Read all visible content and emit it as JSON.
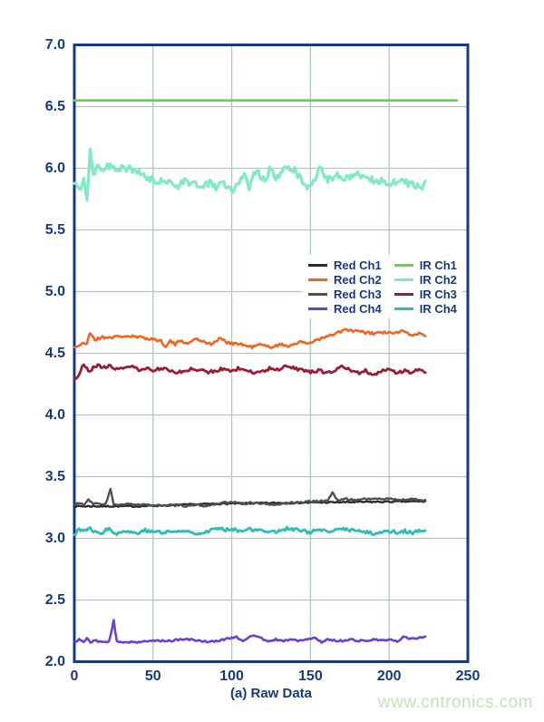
{
  "page": {
    "watermark": "www.cntronics.com"
  },
  "chart_data": {
    "type": "line",
    "title": "",
    "caption": "(a) Raw Data",
    "xlabel": "",
    "ylabel": "",
    "xlim": [
      0,
      250
    ],
    "ylim": [
      2.0,
      7.0
    ],
    "xticks": [
      "0",
      "50",
      "100",
      "150",
      "200",
      "250"
    ],
    "yticks": [
      "7.0",
      "6.5",
      "6.0",
      "5.5",
      "5.0",
      "4.5",
      "4.0",
      "3.5",
      "3.0",
      "2.5",
      "2.0"
    ],
    "grid": true,
    "legend_position": "center-right-two-columns",
    "colors": {
      "axis": "#173a7e",
      "grid": "#abc7cf",
      "tick_text": "#173a7e",
      "caption_text": "#173a7e",
      "watermark_text": "#c3e3b6",
      "legend_background": "#ffffff"
    },
    "series": [
      {
        "name": "Red Ch1",
        "color": "#2b2b2d",
        "width": 2.4,
        "noise": 0.006,
        "seed": 7,
        "points": [
          [
            0,
            3.26
          ],
          [
            40,
            3.26
          ],
          [
            90,
            3.28
          ],
          [
            150,
            3.29
          ],
          [
            223,
            3.3
          ]
        ]
      },
      {
        "name": "Red Ch2",
        "color": "#f2641f",
        "width": 2.6,
        "noise": 0.012,
        "seed": 21,
        "points": [
          [
            0,
            4.55
          ],
          [
            4,
            4.57
          ],
          [
            8,
            4.58
          ],
          [
            10,
            4.67
          ],
          [
            13,
            4.61
          ],
          [
            18,
            4.63
          ],
          [
            25,
            4.63
          ],
          [
            32,
            4.64
          ],
          [
            40,
            4.63
          ],
          [
            48,
            4.62
          ],
          [
            55,
            4.6
          ],
          [
            58,
            4.56
          ],
          [
            61,
            4.6
          ],
          [
            64,
            4.57
          ],
          [
            68,
            4.61
          ],
          [
            72,
            4.57
          ],
          [
            76,
            4.62
          ],
          [
            82,
            4.6
          ],
          [
            87,
            4.57
          ],
          [
            92,
            4.62
          ],
          [
            97,
            4.59
          ],
          [
            102,
            4.58
          ],
          [
            107,
            4.57
          ],
          [
            112,
            4.55
          ],
          [
            118,
            4.57
          ],
          [
            124,
            4.55
          ],
          [
            130,
            4.57
          ],
          [
            136,
            4.56
          ],
          [
            142,
            4.59
          ],
          [
            148,
            4.58
          ],
          [
            154,
            4.61
          ],
          [
            160,
            4.63
          ],
          [
            166,
            4.66
          ],
          [
            172,
            4.69
          ],
          [
            178,
            4.68
          ],
          [
            184,
            4.67
          ],
          [
            190,
            4.66
          ],
          [
            196,
            4.67
          ],
          [
            202,
            4.66
          ],
          [
            208,
            4.68
          ],
          [
            214,
            4.65
          ],
          [
            219,
            4.66
          ],
          [
            223,
            4.65
          ]
        ]
      },
      {
        "name": "Red Ch3",
        "color": "#4e4f52",
        "width": 2.4,
        "noise": 0.007,
        "seed": 33,
        "points": [
          [
            0,
            3.27
          ],
          [
            3,
            3.29
          ],
          [
            6,
            3.27
          ],
          [
            9,
            3.31
          ],
          [
            12,
            3.28
          ],
          [
            16,
            3.28
          ],
          [
            20,
            3.28
          ],
          [
            23,
            3.4
          ],
          [
            25,
            3.27
          ],
          [
            30,
            3.27
          ],
          [
            36,
            3.28
          ],
          [
            42,
            3.27
          ],
          [
            48,
            3.27
          ],
          [
            54,
            3.27
          ],
          [
            60,
            3.26
          ],
          [
            66,
            3.27
          ],
          [
            72,
            3.26
          ],
          [
            78,
            3.27
          ],
          [
            84,
            3.26
          ],
          [
            90,
            3.28
          ],
          [
            96,
            3.29
          ],
          [
            102,
            3.29
          ],
          [
            108,
            3.28
          ],
          [
            114,
            3.29
          ],
          [
            120,
            3.28
          ],
          [
            126,
            3.27
          ],
          [
            132,
            3.28
          ],
          [
            138,
            3.29
          ],
          [
            144,
            3.29
          ],
          [
            150,
            3.3
          ],
          [
            156,
            3.3
          ],
          [
            161,
            3.31
          ],
          [
            164,
            3.37
          ],
          [
            167,
            3.31
          ],
          [
            172,
            3.32
          ],
          [
            178,
            3.31
          ],
          [
            184,
            3.32
          ],
          [
            190,
            3.32
          ],
          [
            196,
            3.32
          ],
          [
            202,
            3.32
          ],
          [
            208,
            3.31
          ],
          [
            214,
            3.32
          ],
          [
            219,
            3.31
          ],
          [
            223,
            3.31
          ]
        ]
      },
      {
        "name": "Red Ch4",
        "color": "#6a3fd2",
        "width": 2.6,
        "noise": 0.007,
        "seed": 44,
        "points": [
          [
            0,
            2.16
          ],
          [
            3,
            2.18
          ],
          [
            6,
            2.16
          ],
          [
            8,
            2.19
          ],
          [
            10,
            2.16
          ],
          [
            14,
            2.17
          ],
          [
            18,
            2.16
          ],
          [
            22,
            2.16
          ],
          [
            25,
            2.33
          ],
          [
            27,
            2.16
          ],
          [
            32,
            2.16
          ],
          [
            38,
            2.16
          ],
          [
            44,
            2.16
          ],
          [
            50,
            2.17
          ],
          [
            56,
            2.17
          ],
          [
            62,
            2.17
          ],
          [
            68,
            2.18
          ],
          [
            74,
            2.18
          ],
          [
            80,
            2.17
          ],
          [
            86,
            2.16
          ],
          [
            92,
            2.17
          ],
          [
            98,
            2.19
          ],
          [
            103,
            2.2
          ],
          [
            107,
            2.17
          ],
          [
            111,
            2.2
          ],
          [
            115,
            2.21
          ],
          [
            119,
            2.19
          ],
          [
            123,
            2.16
          ],
          [
            128,
            2.18
          ],
          [
            133,
            2.17
          ],
          [
            138,
            2.18
          ],
          [
            143,
            2.17
          ],
          [
            148,
            2.18
          ],
          [
            153,
            2.19
          ],
          [
            157,
            2.16
          ],
          [
            161,
            2.18
          ],
          [
            166,
            2.17
          ],
          [
            171,
            2.17
          ],
          [
            176,
            2.18
          ],
          [
            181,
            2.17
          ],
          [
            186,
            2.17
          ],
          [
            191,
            2.18
          ],
          [
            196,
            2.17
          ],
          [
            201,
            2.18
          ],
          [
            205,
            2.16
          ],
          [
            209,
            2.2
          ],
          [
            213,
            2.19
          ],
          [
            217,
            2.19
          ],
          [
            221,
            2.2
          ],
          [
            223,
            2.2
          ]
        ]
      },
      {
        "name": "IR Ch1",
        "color": "#5ed648",
        "width": 2.6,
        "noise": 0,
        "seed": 1,
        "points": [
          [
            0,
            6.55
          ],
          [
            243,
            6.55
          ]
        ]
      },
      {
        "name": "IR Ch2",
        "color": "#82e9c6",
        "width": 3.2,
        "noise": 0.03,
        "seed": 55,
        "points": [
          [
            0,
            5.88
          ],
          [
            3,
            5.82
          ],
          [
            6,
            5.92
          ],
          [
            8,
            5.74
          ],
          [
            10,
            6.15
          ],
          [
            12,
            5.96
          ],
          [
            15,
            6.03
          ],
          [
            18,
            6.0
          ],
          [
            22,
            6.02
          ],
          [
            26,
            6.0
          ],
          [
            30,
            6.01
          ],
          [
            34,
            6.0
          ],
          [
            38,
            5.98
          ],
          [
            42,
            5.95
          ],
          [
            46,
            5.92
          ],
          [
            50,
            5.9
          ],
          [
            54,
            5.88
          ],
          [
            58,
            5.91
          ],
          [
            62,
            5.88
          ],
          [
            66,
            5.86
          ],
          [
            70,
            5.9
          ],
          [
            74,
            5.88
          ],
          [
            78,
            5.87
          ],
          [
            82,
            5.85
          ],
          [
            86,
            5.88
          ],
          [
            90,
            5.85
          ],
          [
            94,
            5.88
          ],
          [
            98,
            5.85
          ],
          [
            101,
            5.79
          ],
          [
            104,
            5.9
          ],
          [
            108,
            5.94
          ],
          [
            111,
            5.85
          ],
          [
            114,
            5.99
          ],
          [
            118,
            5.95
          ],
          [
            121,
            5.88
          ],
          [
            124,
            5.99
          ],
          [
            128,
            5.92
          ],
          [
            132,
            5.97
          ],
          [
            136,
            6.0
          ],
          [
            140,
            5.98
          ],
          [
            144,
            5.91
          ],
          [
            148,
            5.86
          ],
          [
            152,
            5.88
          ],
          [
            156,
            6.02
          ],
          [
            159,
            5.9
          ],
          [
            163,
            5.92
          ],
          [
            167,
            5.95
          ],
          [
            171,
            5.91
          ],
          [
            176,
            5.92
          ],
          [
            181,
            5.95
          ],
          [
            186,
            5.93
          ],
          [
            191,
            5.9
          ],
          [
            196,
            5.9
          ],
          [
            201,
            5.88
          ],
          [
            206,
            5.91
          ],
          [
            211,
            5.88
          ],
          [
            216,
            5.86
          ],
          [
            220,
            5.84
          ],
          [
            223,
            5.87
          ]
        ]
      },
      {
        "name": "IR Ch3",
        "color": "#9d1b33",
        "width": 2.8,
        "noise": 0.013,
        "seed": 66,
        "points": [
          [
            0,
            4.3
          ],
          [
            3,
            4.32
          ],
          [
            6,
            4.42
          ],
          [
            9,
            4.36
          ],
          [
            12,
            4.38
          ],
          [
            15,
            4.4
          ],
          [
            18,
            4.38
          ],
          [
            22,
            4.4
          ],
          [
            26,
            4.38
          ],
          [
            30,
            4.38
          ],
          [
            34,
            4.4
          ],
          [
            38,
            4.38
          ],
          [
            42,
            4.36
          ],
          [
            46,
            4.38
          ],
          [
            50,
            4.36
          ],
          [
            55,
            4.38
          ],
          [
            60,
            4.36
          ],
          [
            65,
            4.34
          ],
          [
            70,
            4.36
          ],
          [
            75,
            4.38
          ],
          [
            80,
            4.36
          ],
          [
            85,
            4.35
          ],
          [
            90,
            4.36
          ],
          [
            95,
            4.38
          ],
          [
            100,
            4.36
          ],
          [
            105,
            4.38
          ],
          [
            110,
            4.36
          ],
          [
            115,
            4.34
          ],
          [
            120,
            4.36
          ],
          [
            125,
            4.38
          ],
          [
            130,
            4.36
          ],
          [
            135,
            4.4
          ],
          [
            140,
            4.38
          ],
          [
            145,
            4.36
          ],
          [
            150,
            4.35
          ],
          [
            155,
            4.36
          ],
          [
            160,
            4.34
          ],
          [
            165,
            4.36
          ],
          [
            170,
            4.4
          ],
          [
            175,
            4.36
          ],
          [
            180,
            4.34
          ],
          [
            185,
            4.36
          ],
          [
            190,
            4.32
          ],
          [
            195,
            4.36
          ],
          [
            200,
            4.38
          ],
          [
            205,
            4.34
          ],
          [
            210,
            4.36
          ],
          [
            215,
            4.34
          ],
          [
            219,
            4.38
          ],
          [
            223,
            4.34
          ]
        ]
      },
      {
        "name": "IR Ch4",
        "color": "#2fbcb9",
        "width": 2.8,
        "noise": 0.014,
        "seed": 77,
        "points": [
          [
            0,
            3.03
          ],
          [
            3,
            3.08
          ],
          [
            6,
            3.05
          ],
          [
            9,
            3.09
          ],
          [
            12,
            3.05
          ],
          [
            15,
            3.06
          ],
          [
            18,
            3.04
          ],
          [
            22,
            3.09
          ],
          [
            25,
            3.05
          ],
          [
            28,
            3.04
          ],
          [
            32,
            3.06
          ],
          [
            36,
            3.05
          ],
          [
            40,
            3.04
          ],
          [
            44,
            3.07
          ],
          [
            48,
            3.05
          ],
          [
            52,
            3.06
          ],
          [
            56,
            3.04
          ],
          [
            60,
            3.06
          ],
          [
            65,
            3.05
          ],
          [
            70,
            3.06
          ],
          [
            75,
            3.05
          ],
          [
            80,
            3.04
          ],
          [
            85,
            3.06
          ],
          [
            90,
            3.08
          ],
          [
            95,
            3.07
          ],
          [
            100,
            3.08
          ],
          [
            105,
            3.06
          ],
          [
            110,
            3.08
          ],
          [
            115,
            3.06
          ],
          [
            120,
            3.07
          ],
          [
            125,
            3.05
          ],
          [
            130,
            3.06
          ],
          [
            135,
            3.08
          ],
          [
            140,
            3.07
          ],
          [
            145,
            3.06
          ],
          [
            150,
            3.05
          ],
          [
            155,
            3.07
          ],
          [
            160,
            3.05
          ],
          [
            165,
            3.06
          ],
          [
            170,
            3.08
          ],
          [
            175,
            3.07
          ],
          [
            180,
            3.06
          ],
          [
            185,
            3.05
          ],
          [
            190,
            3.04
          ],
          [
            195,
            3.05
          ],
          [
            200,
            3.06
          ],
          [
            205,
            3.05
          ],
          [
            210,
            3.06
          ],
          [
            215,
            3.04
          ],
          [
            219,
            3.06
          ],
          [
            223,
            3.05
          ]
        ]
      }
    ]
  }
}
